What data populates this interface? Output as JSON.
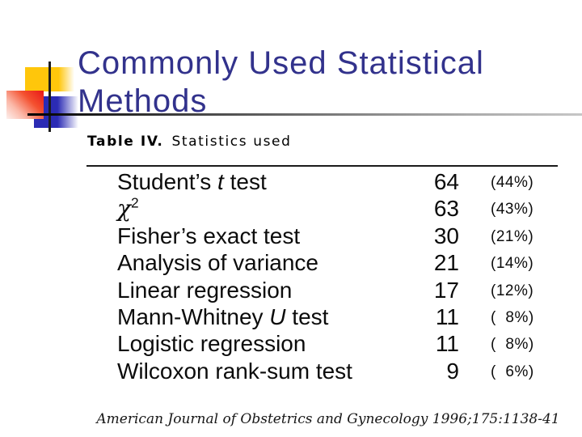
{
  "title": {
    "line1": "Commonly Used Statistical",
    "line2": "Methods"
  },
  "table": {
    "caption_bold": "Table IV.",
    "caption_rest": "Statistics used",
    "rows": [
      {
        "name_parts": [
          {
            "t": "Student’s "
          },
          {
            "t": "t",
            "style": "italic"
          },
          {
            "t": " test"
          }
        ],
        "count": "64",
        "pct": "(44%)"
      },
      {
        "name_parts": [
          {
            "t": "χ",
            "style": "chi"
          },
          {
            "t": "2",
            "style": "sup"
          }
        ],
        "count": "63",
        "pct": "(43%)"
      },
      {
        "name_parts": [
          {
            "t": "Fisher’s exact test"
          }
        ],
        "count": "30",
        "pct": "(21%)"
      },
      {
        "name_parts": [
          {
            "t": "Analysis of variance"
          }
        ],
        "count": "21",
        "pct": "(14%)"
      },
      {
        "name_parts": [
          {
            "t": "Linear regression"
          }
        ],
        "count": "17",
        "pct": "(12%)"
      },
      {
        "name_parts": [
          {
            "t": "Mann-Whitney "
          },
          {
            "t": "U",
            "style": "italic"
          },
          {
            "t": " test"
          }
        ],
        "count": "11",
        "pct": "(  8%)"
      },
      {
        "name_parts": [
          {
            "t": "Logistic regression"
          }
        ],
        "count": "11",
        "pct": "(  8%)"
      },
      {
        "name_parts": [
          {
            "t": "Wilcoxon rank-sum test"
          }
        ],
        "count": "9",
        "pct": "(  6%)"
      }
    ]
  },
  "footer": {
    "citation": "American Journal of Obstetrics and Gynecology 1996;175:1138-41"
  },
  "colors": {
    "title": "#32328C",
    "accent_yellow": "#FFC60B",
    "accent_blue": "#2B2BB4",
    "accent_red": "#E81717"
  }
}
